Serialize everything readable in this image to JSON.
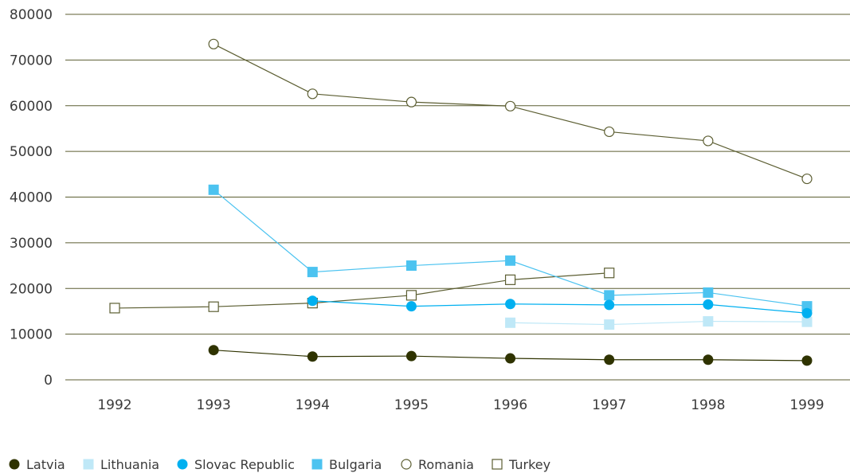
{
  "chart_data": {
    "type": "line",
    "title": "",
    "xlabel": "",
    "ylabel": "",
    "x": [
      "1992",
      "1993",
      "1994",
      "1995",
      "1996",
      "1997",
      "1998",
      "1999"
    ],
    "ylim": [
      0,
      80000
    ],
    "yticks": [
      0,
      10000,
      20000,
      30000,
      40000,
      50000,
      60000,
      70000,
      80000
    ],
    "grid": "horizontal",
    "legend_position": "bottom",
    "series": [
      {
        "name": "Latvia",
        "marker": "filled-circle",
        "color": "#2f3300",
        "values": [
          null,
          6500,
          5100,
          5200,
          4700,
          4400,
          4400,
          4200
        ]
      },
      {
        "name": "Lithuania",
        "marker": "filled-square",
        "color": "#bfe8f7",
        "values": [
          null,
          null,
          null,
          null,
          12500,
          12100,
          12800,
          12700
        ]
      },
      {
        "name": "Slovac Republic",
        "marker": "filled-circle",
        "color": "#00b0f0",
        "values": [
          null,
          null,
          17300,
          16100,
          16600,
          16400,
          16500,
          14600
        ]
      },
      {
        "name": "Bulgaria",
        "marker": "filled-square",
        "color": "#4cc3f0",
        "values": [
          null,
          41600,
          23600,
          25000,
          26100,
          18500,
          19100,
          16100
        ]
      },
      {
        "name": "Romania",
        "marker": "open-circle",
        "color": "#5c5e32",
        "values": [
          null,
          73500,
          62600,
          60800,
          59900,
          54300,
          52300,
          44000
        ]
      },
      {
        "name": "Turkey",
        "marker": "open-square",
        "color": "#5c5e32",
        "values": [
          15700,
          16000,
          16800,
          18500,
          21900,
          23400,
          null,
          null
        ]
      }
    ]
  }
}
